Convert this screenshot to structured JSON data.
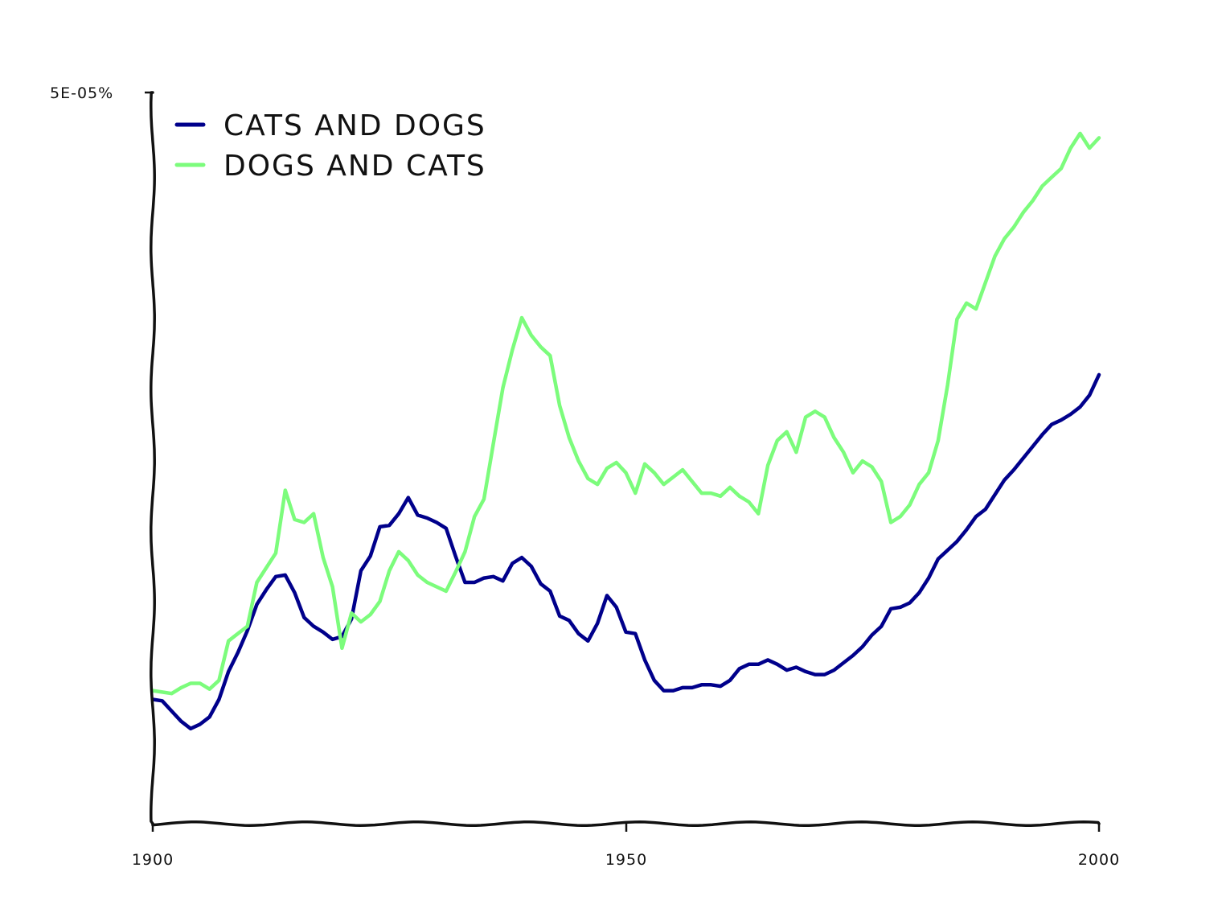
{
  "chart_data": {
    "type": "line",
    "title": "",
    "xlabel": "",
    "ylabel": "",
    "xlim": [
      1900,
      2000
    ],
    "ylim": [
      0,
      5e-05
    ],
    "x_ticks": [
      {
        "value": 1900,
        "label": "1900"
      },
      {
        "value": 1950,
        "label": "1950"
      },
      {
        "value": 2000,
        "label": "2000"
      }
    ],
    "y_ticks": [
      {
        "value": 5e-05,
        "label": "5E-05%"
      }
    ],
    "legend_position": "top-left",
    "grid": false,
    "x": [
      1900,
      1901,
      1902,
      1903,
      1904,
      1905,
      1906,
      1907,
      1908,
      1909,
      1910,
      1911,
      1912,
      1913,
      1914,
      1915,
      1916,
      1917,
      1918,
      1919,
      1920,
      1921,
      1922,
      1923,
      1924,
      1925,
      1926,
      1927,
      1928,
      1929,
      1930,
      1931,
      1932,
      1933,
      1934,
      1935,
      1936,
      1937,
      1938,
      1939,
      1940,
      1941,
      1942,
      1943,
      1944,
      1945,
      1946,
      1947,
      1948,
      1949,
      1950,
      1951,
      1952,
      1953,
      1954,
      1955,
      1956,
      1957,
      1958,
      1959,
      1960,
      1961,
      1962,
      1963,
      1964,
      1965,
      1966,
      1967,
      1968,
      1969,
      1970,
      1971,
      1972,
      1973,
      1974,
      1975,
      1976,
      1977,
      1978,
      1979,
      1980,
      1981,
      1982,
      1983,
      1984,
      1985,
      1986,
      1987,
      1988,
      1989,
      1990,
      1991,
      1992,
      1993,
      1994,
      1995,
      1996,
      1997,
      1998,
      1999,
      2000
    ],
    "series": [
      {
        "name": "CATS AND DOGS",
        "color": "#00008b",
        "values": [
          8.5e-06,
          8.4e-06,
          7.7e-06,
          7e-06,
          6.5e-06,
          6.8e-06,
          7.3e-06,
          8.5e-06,
          1.04e-05,
          1.17e-05,
          1.32e-05,
          1.5e-05,
          1.6e-05,
          1.69e-05,
          1.7e-05,
          1.58e-05,
          1.41e-05,
          1.35e-05,
          1.31e-05,
          1.26e-05,
          1.28e-05,
          1.4e-05,
          1.73e-05,
          1.83e-05,
          2.03e-05,
          2.04e-05,
          2.12e-05,
          2.23e-05,
          2.11e-05,
          2.09e-05,
          2.06e-05,
          2.02e-05,
          1.83e-05,
          1.65e-05,
          1.65e-05,
          1.68e-05,
          1.69e-05,
          1.66e-05,
          1.78e-05,
          1.82e-05,
          1.76e-05,
          1.64e-05,
          1.59e-05,
          1.42e-05,
          1.39e-05,
          1.3e-05,
          1.25e-05,
          1.37e-05,
          1.56e-05,
          1.48e-05,
          1.31e-05,
          1.3e-05,
          1.12e-05,
          9.8e-06,
          9.1e-06,
          9.1e-06,
          9.3e-06,
          9.3e-06,
          9.5e-06,
          9.5e-06,
          9.4e-06,
          9.8e-06,
          1.06e-05,
          1.09e-05,
          1.09e-05,
          1.12e-05,
          1.09e-05,
          1.05e-05,
          1.07e-05,
          1.04e-05,
          1.02e-05,
          1.02e-05,
          1.05e-05,
          1.1e-05,
          1.15e-05,
          1.21e-05,
          1.29e-05,
          1.35e-05,
          1.47e-05,
          1.48e-05,
          1.51e-05,
          1.58e-05,
          1.68e-05,
          1.81e-05,
          1.87e-05,
          1.93e-05,
          2.01e-05,
          2.1e-05,
          2.15e-05,
          2.25e-05,
          2.35e-05,
          2.42e-05,
          2.5e-05,
          2.58e-05,
          2.66e-05,
          2.73e-05,
          2.76e-05,
          2.8e-05,
          2.85e-05,
          2.93e-05,
          3.07e-05
        ]
      },
      {
        "name": "DOGS AND CATS",
        "color": "#7cfc7c",
        "values": [
          9.1e-06,
          9e-06,
          8.9e-06,
          9.3e-06,
          9.6e-06,
          9.6e-06,
          9.2e-06,
          9.8e-06,
          1.25e-05,
          1.3e-05,
          1.35e-05,
          1.65e-05,
          1.75e-05,
          1.85e-05,
          2.28e-05,
          2.08e-05,
          2.06e-05,
          2.12e-05,
          1.82e-05,
          1.62e-05,
          1.2e-05,
          1.44e-05,
          1.38e-05,
          1.43e-05,
          1.52e-05,
          1.73e-05,
          1.86e-05,
          1.8e-05,
          1.7e-05,
          1.65e-05,
          1.62e-05,
          1.59e-05,
          1.72e-05,
          1.86e-05,
          2.1e-05,
          2.22e-05,
          2.6e-05,
          2.98e-05,
          3.24e-05,
          3.46e-05,
          3.34e-05,
          3.26e-05,
          3.2e-05,
          2.86e-05,
          2.64e-05,
          2.48e-05,
          2.36e-05,
          2.32e-05,
          2.43e-05,
          2.47e-05,
          2.4e-05,
          2.26e-05,
          2.46e-05,
          2.4e-05,
          2.32e-05,
          2.37e-05,
          2.42e-05,
          2.34e-05,
          2.26e-05,
          2.26e-05,
          2.24e-05,
          2.3e-05,
          2.24e-05,
          2.2e-05,
          2.12e-05,
          2.45e-05,
          2.62e-05,
          2.68e-05,
          2.54e-05,
          2.78e-05,
          2.82e-05,
          2.78e-05,
          2.64e-05,
          2.54e-05,
          2.4e-05,
          2.48e-05,
          2.44e-05,
          2.34e-05,
          2.06e-05,
          2.1e-05,
          2.18e-05,
          2.32e-05,
          2.4e-05,
          2.62e-05,
          3e-05,
          3.45e-05,
          3.56e-05,
          3.52e-05,
          3.7e-05,
          3.88e-05,
          4e-05,
          4.08e-05,
          4.18e-05,
          4.26e-05,
          4.36e-05,
          4.42e-05,
          4.48e-05,
          4.62e-05,
          4.72e-05,
          4.62e-05,
          4.69e-05
        ]
      }
    ]
  }
}
